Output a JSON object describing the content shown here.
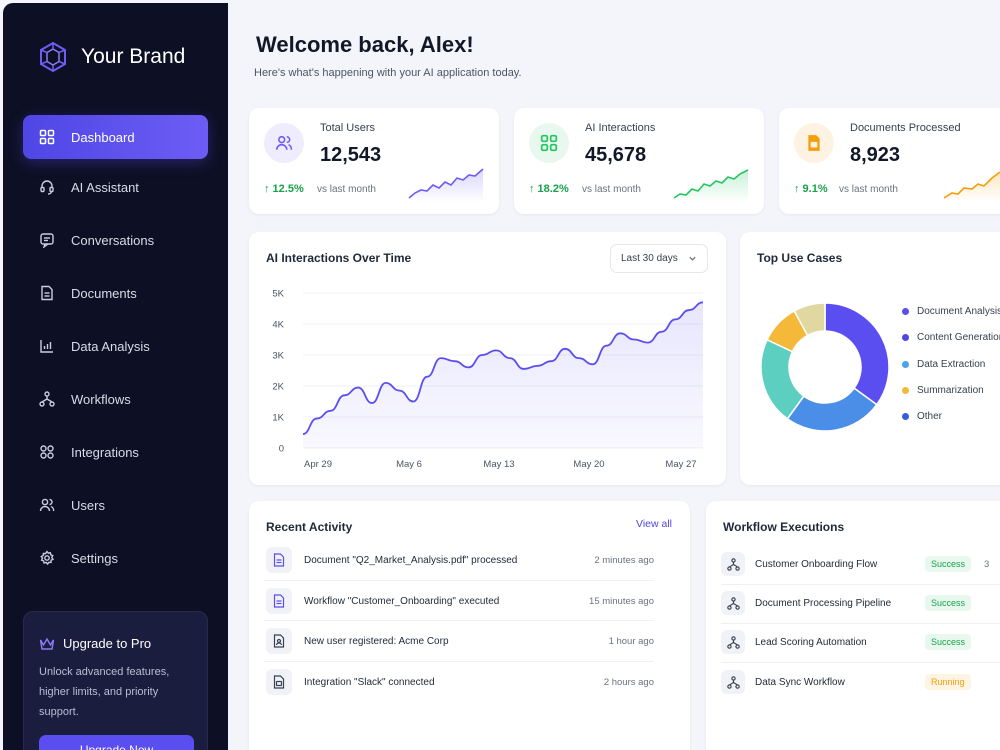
{
  "brand": {
    "name": "Your Brand"
  },
  "sidebar": {
    "items": [
      {
        "label": "Dashboard",
        "icon": "grid-icon",
        "active": true
      },
      {
        "label": "AI Assistant",
        "icon": "headset-icon"
      },
      {
        "label": "Conversations",
        "icon": "chat-icon"
      },
      {
        "label": "Documents",
        "icon": "document-icon"
      },
      {
        "label": "Data Analysis",
        "icon": "chart-icon"
      },
      {
        "label": "Workflows",
        "icon": "workflow-icon"
      },
      {
        "label": "Integrations",
        "icon": "integrations-icon"
      },
      {
        "label": "Users",
        "icon": "users-icon"
      },
      {
        "label": "Settings",
        "icon": "gear-icon"
      }
    ],
    "upgrade": {
      "title": "Upgrade to Pro",
      "description": "Unlock advanced features, higher limits, and priority support.",
      "button": "Upgrade Now"
    }
  },
  "header": {
    "title": "Welcome back, Alex!",
    "subtitle": "Here's what's happening with your AI application today."
  },
  "stats": [
    {
      "label": "Total Users",
      "value": "12,543",
      "change": "↑ 12.5%",
      "period": "vs last month",
      "color": "#6d5df5",
      "icon": "users-icon"
    },
    {
      "label": "AI Interactions",
      "value": "45,678",
      "change": "↑ 18.2%",
      "period": "vs last month",
      "color": "#22c55e",
      "icon": "grid-icon"
    },
    {
      "label": "Documents Processed",
      "value": "8,923",
      "change": "↑ 9.1%",
      "period": "vs last month",
      "color": "#f59e0b",
      "icon": "document-icon"
    }
  ],
  "interactions_chart": {
    "title": "AI Interactions Over Time",
    "range": "Last 30 days"
  },
  "chart_data": [
    {
      "type": "area",
      "title": "AI Interactions Over Time",
      "ylim": [
        0,
        5000
      ],
      "yticks": [
        "5K",
        "4K",
        "3K",
        "2K",
        "1K",
        "0"
      ],
      "xticks": [
        "Apr 29",
        "May 6",
        "May 13",
        "May 20",
        "May 27"
      ],
      "x": [
        0,
        1,
        2,
        3,
        4,
        5,
        6,
        7,
        8,
        9,
        10,
        11,
        12,
        13,
        14,
        15,
        16,
        17,
        18,
        19,
        20,
        21,
        22,
        23,
        24,
        25,
        26,
        27,
        28,
        29
      ],
      "values": [
        450,
        950,
        1200,
        1700,
        1950,
        1450,
        2100,
        1850,
        1500,
        2300,
        2900,
        2800,
        2600,
        3000,
        3150,
        2900,
        2550,
        2650,
        2800,
        3200,
        2900,
        2700,
        3300,
        3700,
        3500,
        3400,
        3750,
        4150,
        4450,
        4700
      ],
      "color": "#5b4ef0"
    },
    {
      "type": "pie",
      "title": "Top Use Cases",
      "labels": [
        "Document Analysis",
        "Content Generation",
        "Data Extraction",
        "Summarization",
        "Other"
      ],
      "values": [
        35,
        25,
        22,
        10,
        8
      ],
      "colors": [
        "#5b4ef0",
        "#4a8ee8",
        "#5ccfc0",
        "#f5b93a",
        "#e0d8a0"
      ]
    }
  ],
  "use_cases": {
    "title": "Top Use Cases",
    "legend": [
      {
        "label": "Document Analysis",
        "color": "#5b4ef0"
      },
      {
        "label": "Content Generation",
        "color": "#4f46e5"
      },
      {
        "label": "Data Extraction",
        "color": "#4aa3e8"
      },
      {
        "label": "Summarization",
        "color": "#f5b93a"
      },
      {
        "label": "Other",
        "color": "#3b5bdb"
      }
    ]
  },
  "activity": {
    "title": "Recent Activity",
    "view_all": "View all",
    "items": [
      {
        "text": "Document \"Q2_Market_Analysis.pdf\" processed",
        "time": "2 minutes ago"
      },
      {
        "text": "Workflow \"Customer_Onboarding\" executed",
        "time": "15 minutes ago"
      },
      {
        "text": "New user registered: Acme Corp",
        "time": "1 hour ago"
      },
      {
        "text": "Integration \"Slack\" connected",
        "time": "2 hours ago"
      }
    ]
  },
  "workflows": {
    "title": "Workflow Executions",
    "items": [
      {
        "name": "Customer Onboarding Flow",
        "status": "Success",
        "extra": "3"
      },
      {
        "name": "Document Processing Pipeline",
        "status": "Success"
      },
      {
        "name": "Lead Scoring Automation",
        "status": "Success"
      },
      {
        "name": "Data Sync Workflow",
        "status": "Running"
      }
    ]
  }
}
